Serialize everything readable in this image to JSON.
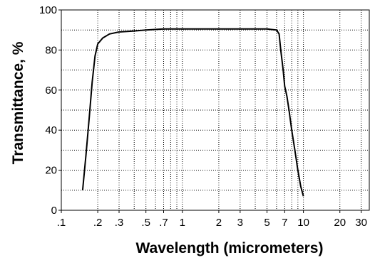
{
  "chart_data": {
    "type": "line",
    "xlabel": "Wavelength (micrometers)",
    "ylabel": "Transmittance, %",
    "x_scale": "log",
    "xlim": [
      0.1,
      35
    ],
    "ylim": [
      0,
      100
    ],
    "grid": "dotted",
    "x_tick_labels": [
      {
        "value": 0.1,
        "label": ".1"
      },
      {
        "value": 0.2,
        "label": ".2"
      },
      {
        "value": 0.3,
        "label": ".3"
      },
      {
        "value": 0.5,
        "label": ".5"
      },
      {
        "value": 0.7,
        "label": ".7"
      },
      {
        "value": 1,
        "label": "1"
      },
      {
        "value": 2,
        "label": "2"
      },
      {
        "value": 3,
        "label": "3"
      },
      {
        "value": 5,
        "label": "5"
      },
      {
        "value": 7,
        "label": "7"
      },
      {
        "value": 10,
        "label": "10"
      },
      {
        "value": 20,
        "label": "20"
      },
      {
        "value": 30,
        "label": "30"
      }
    ],
    "y_tick_labels": [
      {
        "value": 0,
        "label": "0"
      },
      {
        "value": 20,
        "label": "20"
      },
      {
        "value": 40,
        "label": "40"
      },
      {
        "value": 60,
        "label": "60"
      },
      {
        "value": 80,
        "label": "80"
      },
      {
        "value": 100,
        "label": "100"
      }
    ],
    "series": [
      {
        "x": [
          0.15,
          0.16,
          0.17,
          0.18,
          0.19,
          0.2,
          0.22,
          0.25,
          0.3,
          0.4,
          0.5,
          0.7,
          1,
          2,
          3,
          5,
          6,
          6.3,
          6.5,
          6.8,
          7,
          7.3,
          7.6,
          8,
          8.5,
          9,
          9.5,
          10
        ],
        "y": [
          10,
          28,
          46,
          64,
          77,
          83,
          86,
          88,
          89,
          89.5,
          90,
          90.5,
          90.5,
          90.5,
          90.5,
          90.5,
          90,
          88,
          80,
          70,
          62,
          57,
          50,
          40,
          30,
          20,
          12,
          7
        ]
      }
    ]
  }
}
